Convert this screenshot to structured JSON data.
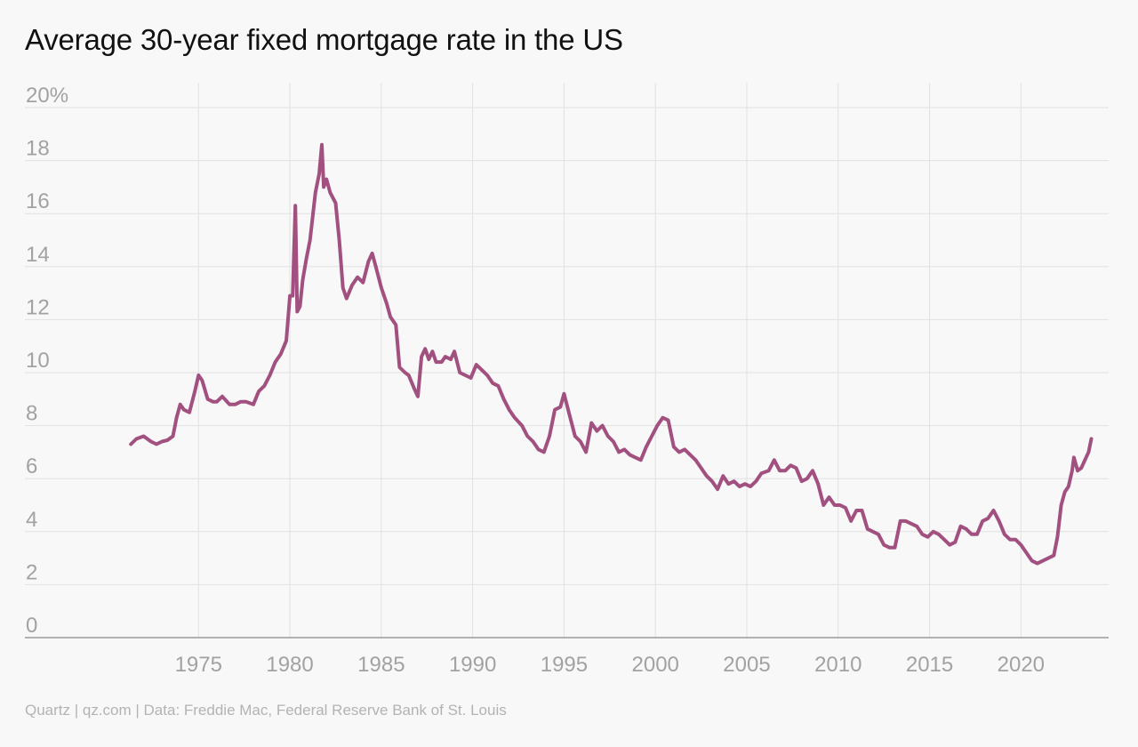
{
  "source": "Quartz | qz.com | Data: Freddie Mac, Federal Reserve Bank of St. Louis",
  "colors": {
    "background": "#f8f8f8",
    "line": "#a2507f",
    "grid": "#e1e1e1",
    "axis": "#9a9a9a",
    "tick_text": "#a2a2a2",
    "source_text": "#b3b3b3"
  },
  "chart_data": {
    "type": "line",
    "title": "Average 30-year fixed mortgage rate in the US",
    "xlabel": "",
    "ylabel": "",
    "xlim": [
      1965.5,
      2024.8
    ],
    "ylim": [
      0,
      20
    ],
    "y_ticks": [
      0,
      2,
      4,
      6,
      8,
      10,
      12,
      14,
      16,
      18,
      20
    ],
    "y_tick_labels": [
      "0",
      "2",
      "4",
      "6",
      "8",
      "10",
      "12",
      "14",
      "16",
      "18",
      "20%"
    ],
    "x_ticks": [
      1975,
      1980,
      1985,
      1990,
      1995,
      2000,
      2005,
      2010,
      2015,
      2020
    ],
    "x_tick_labels": [
      "1975",
      "1980",
      "1985",
      "1990",
      "1995",
      "2000",
      "2005",
      "2010",
      "2015",
      "2020"
    ],
    "grid": true,
    "series": [
      {
        "x": [
          1971.3,
          1971.6,
          1972.0,
          1972.4,
          1972.7,
          1973.0,
          1973.3,
          1973.6,
          1973.8,
          1974.0,
          1974.2,
          1974.5,
          1974.8,
          1975.0,
          1975.2,
          1975.5,
          1975.8,
          1976.0,
          1976.3,
          1976.7,
          1977.0,
          1977.3,
          1977.6,
          1978.0,
          1978.3,
          1978.6,
          1978.9,
          1979.2,
          1979.5,
          1979.8,
          1980.0,
          1980.15,
          1980.3,
          1980.4,
          1980.55,
          1980.7,
          1980.9,
          1981.1,
          1981.4,
          1981.6,
          1981.75,
          1981.85,
          1982.0,
          1982.2,
          1982.5,
          1982.7,
          1982.9,
          1983.1,
          1983.4,
          1983.7,
          1984.0,
          1984.3,
          1984.5,
          1984.7,
          1985.0,
          1985.3,
          1985.5,
          1985.8,
          1986.0,
          1986.3,
          1986.5,
          1986.8,
          1987.0,
          1987.2,
          1987.4,
          1987.6,
          1987.8,
          1988.0,
          1988.3,
          1988.5,
          1988.8,
          1989.0,
          1989.3,
          1989.6,
          1989.9,
          1990.2,
          1990.5,
          1990.8,
          1991.1,
          1991.4,
          1991.7,
          1992.0,
          1992.3,
          1992.7,
          1993.0,
          1993.3,
          1993.6,
          1993.9,
          1994.2,
          1994.5,
          1994.8,
          1995.0,
          1995.3,
          1995.6,
          1995.9,
          1996.2,
          1996.5,
          1996.8,
          1997.1,
          1997.4,
          1997.7,
          1998.0,
          1998.3,
          1998.6,
          1998.9,
          1999.2,
          1999.5,
          1999.8,
          2000.1,
          2000.4,
          2000.7,
          2001.0,
          2001.3,
          2001.6,
          2001.9,
          2002.2,
          2002.5,
          2002.8,
          2003.1,
          2003.4,
          2003.7,
          2004.0,
          2004.3,
          2004.6,
          2004.9,
          2005.2,
          2005.5,
          2005.8,
          2006.2,
          2006.5,
          2006.8,
          2007.1,
          2007.4,
          2007.7,
          2008.0,
          2008.3,
          2008.6,
          2008.9,
          2009.2,
          2009.5,
          2009.8,
          2010.1,
          2010.4,
          2010.7,
          2011.0,
          2011.3,
          2011.6,
          2011.9,
          2012.2,
          2012.5,
          2012.8,
          2013.1,
          2013.4,
          2013.7,
          2014.0,
          2014.3,
          2014.6,
          2014.9,
          2015.2,
          2015.5,
          2015.8,
          2016.1,
          2016.4,
          2016.7,
          2017.0,
          2017.3,
          2017.6,
          2017.9,
          2018.2,
          2018.5,
          2018.8,
          2019.1,
          2019.4,
          2019.7,
          2020.0,
          2020.3,
          2020.6,
          2020.9,
          2021.2,
          2021.5,
          2021.8,
          2022.0,
          2022.2,
          2022.4,
          2022.6,
          2022.8,
          2022.9,
          2023.1,
          2023.3,
          2023.5,
          2023.7,
          2023.85
        ],
        "values": [
          7.3,
          7.5,
          7.6,
          7.4,
          7.3,
          7.4,
          7.45,
          7.6,
          8.3,
          8.8,
          8.6,
          8.5,
          9.3,
          9.9,
          9.7,
          9.0,
          8.9,
          8.9,
          9.1,
          8.8,
          8.8,
          8.9,
          8.9,
          8.8,
          9.3,
          9.5,
          9.9,
          10.4,
          10.7,
          11.2,
          12.9,
          12.9,
          16.3,
          12.3,
          12.5,
          13.5,
          14.3,
          15.0,
          16.8,
          17.5,
          18.6,
          17.0,
          17.3,
          16.8,
          16.4,
          15.0,
          13.2,
          12.8,
          13.3,
          13.6,
          13.4,
          14.2,
          14.5,
          14.0,
          13.2,
          12.6,
          12.1,
          11.8,
          10.2,
          10.0,
          9.9,
          9.4,
          9.1,
          10.6,
          10.9,
          10.5,
          10.8,
          10.4,
          10.4,
          10.6,
          10.5,
          10.8,
          10.0,
          9.9,
          9.8,
          10.3,
          10.1,
          9.9,
          9.6,
          9.5,
          9.0,
          8.6,
          8.3,
          8.0,
          7.6,
          7.4,
          7.1,
          7.0,
          7.6,
          8.6,
          8.7,
          9.2,
          8.4,
          7.6,
          7.4,
          7.0,
          8.1,
          7.8,
          8.0,
          7.6,
          7.4,
          7.0,
          7.1,
          6.9,
          6.8,
          6.7,
          7.2,
          7.6,
          8.0,
          8.3,
          8.2,
          7.2,
          7.0,
          7.1,
          6.9,
          6.7,
          6.4,
          6.1,
          5.9,
          5.6,
          6.1,
          5.8,
          5.9,
          5.7,
          5.8,
          5.7,
          5.9,
          6.2,
          6.3,
          6.7,
          6.3,
          6.3,
          6.5,
          6.4,
          5.9,
          6.0,
          6.3,
          5.8,
          5.0,
          5.3,
          5.0,
          5.0,
          4.9,
          4.4,
          4.8,
          4.8,
          4.1,
          4.0,
          3.9,
          3.5,
          3.4,
          3.4,
          4.4,
          4.4,
          4.3,
          4.2,
          3.9,
          3.8,
          4.0,
          3.9,
          3.7,
          3.5,
          3.6,
          4.2,
          4.1,
          3.9,
          3.9,
          4.4,
          4.5,
          4.8,
          4.4,
          3.9,
          3.7,
          3.7,
          3.5,
          3.2,
          2.9,
          2.8,
          2.9,
          3.0,
          3.1,
          3.8,
          5.0,
          5.5,
          5.7,
          6.3,
          6.8,
          6.3,
          6.4,
          6.7,
          7.0,
          7.5
        ]
      }
    ]
  }
}
